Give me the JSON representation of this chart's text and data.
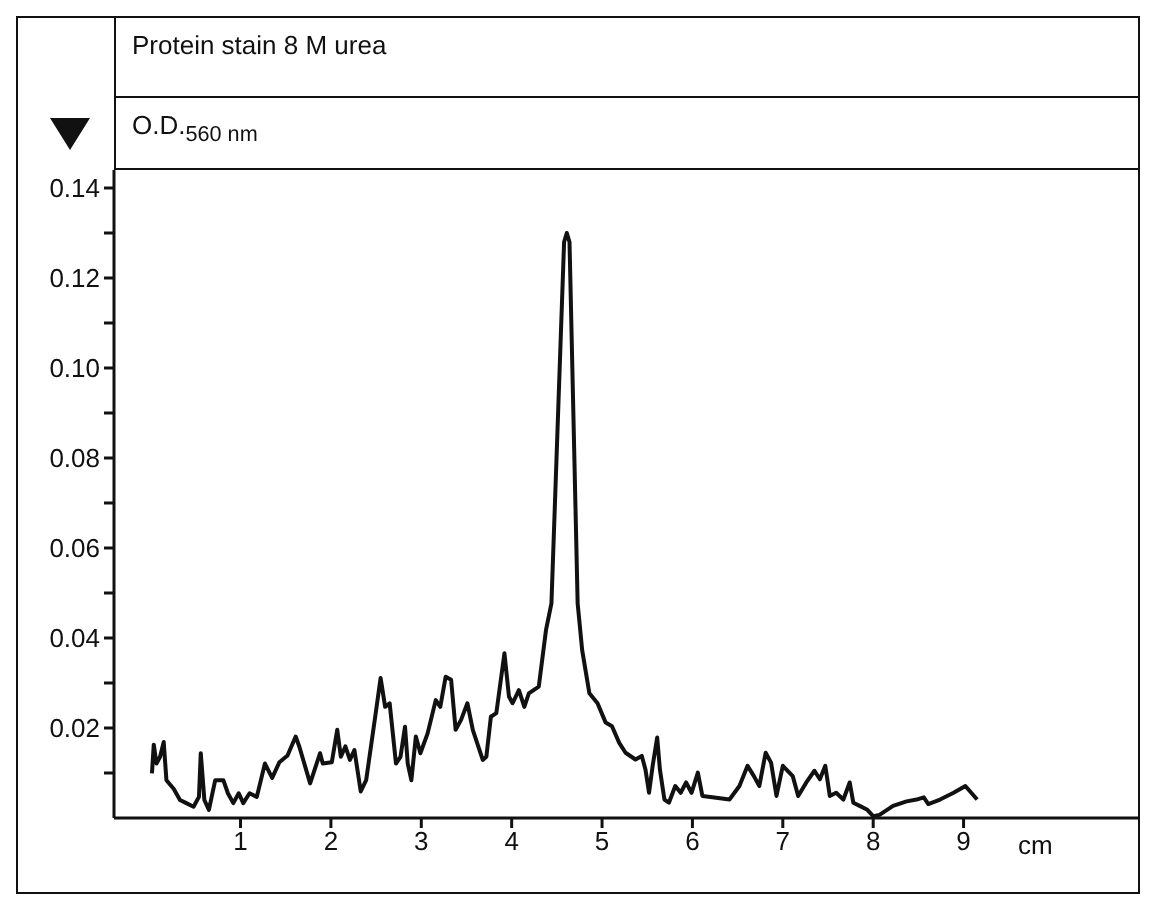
{
  "chart_data": {
    "type": "line",
    "title": "Protein stain 8 M urea",
    "ylabel": "O.D.$_{560 nm}$",
    "xlabel": "cm",
    "x": [
      0.02,
      0.04,
      0.07,
      0.11,
      0.15,
      0.18,
      0.26,
      0.33,
      0.4,
      0.48,
      0.54,
      0.56,
      0.6,
      0.65,
      0.72,
      0.81,
      0.86,
      0.92,
      0.98,
      1.03,
      1.1,
      1.18,
      1.27,
      1.35,
      1.43,
      1.52,
      1.61,
      1.65,
      1.77,
      1.88,
      1.91,
      2.01,
      2.07,
      2.11,
      2.16,
      2.21,
      2.26,
      2.33,
      2.39,
      2.49,
      2.55,
      2.6,
      2.65,
      2.72,
      2.77,
      2.82,
      2.85,
      2.89,
      2.94,
      2.99,
      3.07,
      3.16,
      3.21,
      3.27,
      3.33,
      3.38,
      3.44,
      3.51,
      3.57,
      3.68,
      3.72,
      3.77,
      3.83,
      3.92,
      3.97,
      4.01,
      4.08,
      4.14,
      4.19,
      4.3,
      4.38,
      4.44,
      4.58,
      4.61,
      4.64,
      4.73,
      4.78,
      4.86,
      4.95,
      5.04,
      5.11,
      5.19,
      5.26,
      5.37,
      5.44,
      5.48,
      5.52,
      5.56,
      5.61,
      5.64,
      5.69,
      5.74,
      5.81,
      5.87,
      5.93,
      5.99,
      6.06,
      6.11,
      6.22,
      6.41,
      6.52,
      6.61,
      6.68,
      6.74,
      6.81,
      6.87,
      6.93,
      7.0,
      7.11,
      7.17,
      7.26,
      7.35,
      7.41,
      7.47,
      7.52,
      7.59,
      7.67,
      7.74,
      7.78,
      7.85,
      7.93,
      8.0,
      8.07,
      8.22,
      8.37,
      8.48,
      8.56,
      8.61,
      8.74,
      8.89,
      9.02,
      9.15
    ],
    "series": [
      {
        "color": "#111111",
        "values": [
          0.0099,
          0.0163,
          0.0121,
          0.0136,
          0.0169,
          0.0084,
          0.0065,
          0.004,
          0.0033,
          0.0025,
          0.0047,
          0.0144,
          0.004,
          0.0018,
          0.0084,
          0.0084,
          0.0055,
          0.0033,
          0.0055,
          0.0033,
          0.0055,
          0.0047,
          0.0121,
          0.0089,
          0.0124,
          0.0139,
          0.0181,
          0.0159,
          0.0077,
          0.0144,
          0.0121,
          0.0124,
          0.0196,
          0.0136,
          0.0159,
          0.0129,
          0.0151,
          0.0059,
          0.0084,
          0.0225,
          0.0311,
          0.0247,
          0.0255,
          0.0121,
          0.0136,
          0.0203,
          0.0121,
          0.0084,
          0.0181,
          0.0144,
          0.0188,
          0.0262,
          0.0247,
          0.0314,
          0.0307,
          0.0196,
          0.0218,
          0.0255,
          0.0196,
          0.0129,
          0.0136,
          0.0225,
          0.0233,
          0.0366,
          0.027,
          0.0255,
          0.0284,
          0.0247,
          0.0277,
          0.0292,
          0.0418,
          0.0477,
          0.128,
          0.13,
          0.128,
          0.0477,
          0.0373,
          0.0277,
          0.0255,
          0.0212,
          0.0204,
          0.0167,
          0.0145,
          0.013,
          0.0138,
          0.0108,
          0.0056,
          0.0116,
          0.0179,
          0.0108,
          0.0041,
          0.0034,
          0.0071,
          0.0056,
          0.0079,
          0.0056,
          0.0101,
          0.0049,
          0.0046,
          0.0041,
          0.0071,
          0.0116,
          0.0093,
          0.0071,
          0.0145,
          0.0123,
          0.0049,
          0.0116,
          0.0093,
          0.0049,
          0.0079,
          0.0105,
          0.0086,
          0.0116,
          0.0049,
          0.0056,
          0.0041,
          0.0079,
          0.0034,
          0.0027,
          0.0019,
          0.0004,
          0.0007,
          0.0027,
          0.0037,
          0.0041,
          0.0046,
          0.0031,
          0.0041,
          0.0056,
          0.0071,
          0.0041
        ]
      }
    ],
    "xlim": [
      -0.4,
      10.93
    ],
    "ylim": [
      0,
      0.144
    ],
    "xticks": [
      1,
      2,
      3,
      4,
      5,
      6,
      7,
      8,
      9
    ],
    "yticks": [
      {
        "value": 0.01,
        "label": null
      },
      0.02,
      {
        "value": 0.03,
        "label": null
      },
      0.04,
      {
        "value": 0.05,
        "label": null
      },
      0.06,
      {
        "value": 0.07,
        "label": null
      },
      0.08,
      {
        "value": 0.09,
        "label": null
      },
      {
        "value": 0.1,
        "label": "0.10"
      },
      {
        "value": 0.11,
        "label": null
      },
      0.12,
      {
        "value": 0.13,
        "label": null
      },
      0.14
    ],
    "grid": false,
    "marker": "none",
    "line_style": "solid"
  }
}
